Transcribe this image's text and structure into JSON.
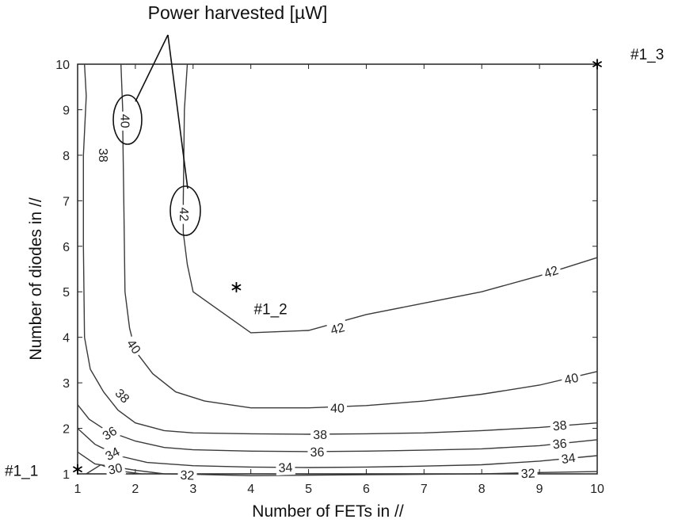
{
  "chart_data": {
    "type": "contour",
    "title": "",
    "xlabel": "Number of FETs in //",
    "ylabel": "Number of diodes in  //",
    "xlim": [
      1,
      10
    ],
    "ylim": [
      1,
      10
    ],
    "xticks": [
      1,
      2,
      3,
      4,
      5,
      6,
      7,
      8,
      9,
      10
    ],
    "yticks": [
      1,
      2,
      3,
      4,
      5,
      6,
      7,
      8,
      9,
      10
    ],
    "grid": false,
    "line_color": "#3a3a3a",
    "annotation": "Power harvested [µW]",
    "contours": [
      {
        "level": "30",
        "points": [
          [
            1.15,
            1.0
          ],
          [
            1.4,
            1.2
          ],
          [
            1.6,
            1.1
          ],
          [
            1.8,
            1.05
          ],
          [
            2.1,
            1.0
          ]
        ],
        "label_at": [
          1.65,
          1.12
        ],
        "label_angle": 12
      },
      {
        "level": "32",
        "points": [
          [
            1.0,
            1.48
          ],
          [
            1.3,
            1.22
          ],
          [
            1.7,
            1.14
          ],
          [
            2.0,
            1.08
          ],
          [
            2.5,
            1.0
          ],
          [
            3.0,
            0.99
          ],
          [
            4.0,
            0.96
          ],
          [
            5.0,
            0.97
          ],
          [
            6.0,
            0.98
          ],
          [
            7.0,
            0.99
          ],
          [
            8.0,
            1.0
          ],
          [
            9.0,
            1.03
          ],
          [
            10.0,
            1.05
          ]
        ],
        "label_at": [
          [
            2.9,
            0.98
          ],
          [
            8.8,
            1.02
          ]
        ],
        "label_angle": [
          -3,
          3
        ]
      },
      {
        "level": "34",
        "points": [
          [
            1.0,
            2.0
          ],
          [
            1.3,
            1.65
          ],
          [
            1.7,
            1.4
          ],
          [
            2.2,
            1.25
          ],
          [
            3.0,
            1.18
          ],
          [
            4.0,
            1.15
          ],
          [
            5.0,
            1.14
          ],
          [
            6.0,
            1.15
          ],
          [
            7.0,
            1.17
          ],
          [
            8.0,
            1.2
          ],
          [
            9.0,
            1.28
          ],
          [
            10.0,
            1.4
          ]
        ],
        "label_at": [
          [
            1.6,
            1.45
          ],
          [
            4.6,
            1.15
          ],
          [
            9.5,
            1.35
          ]
        ],
        "label_angle": [
          28,
          3,
          8
        ]
      },
      {
        "level": "36",
        "points": [
          [
            1.0,
            2.52
          ],
          [
            1.2,
            2.2
          ],
          [
            1.5,
            1.95
          ],
          [
            2.0,
            1.72
          ],
          [
            2.5,
            1.58
          ],
          [
            3.0,
            1.53
          ],
          [
            4.0,
            1.5
          ],
          [
            5.0,
            1.49
          ],
          [
            6.0,
            1.5
          ],
          [
            7.0,
            1.52
          ],
          [
            8.0,
            1.55
          ],
          [
            9.0,
            1.62
          ],
          [
            10.0,
            1.75
          ]
        ],
        "label_at": [
          [
            1.55,
            1.9
          ],
          [
            5.15,
            1.49
          ],
          [
            9.35,
            1.67
          ]
        ],
        "label_angle": [
          32,
          1,
          6
        ]
      },
      {
        "level": "38",
        "points": [
          [
            1.12,
            10.0
          ],
          [
            1.15,
            9.3
          ],
          [
            1.1,
            8.0
          ],
          [
            1.1,
            6.0
          ],
          [
            1.12,
            4.0
          ],
          [
            1.22,
            3.3
          ],
          [
            1.45,
            2.8
          ],
          [
            1.7,
            2.4
          ],
          [
            2.0,
            2.12
          ],
          [
            2.5,
            1.95
          ],
          [
            3.0,
            1.9
          ],
          [
            4.0,
            1.88
          ],
          [
            5.0,
            1.87
          ],
          [
            6.0,
            1.88
          ],
          [
            7.0,
            1.9
          ],
          [
            8.0,
            1.95
          ],
          [
            9.0,
            2.02
          ],
          [
            10.0,
            2.12
          ]
        ],
        "label_at": [
          [
            1.45,
            8.0
          ],
          [
            1.78,
            2.72
          ],
          [
            5.2,
            1.87
          ],
          [
            9.35,
            2.07
          ]
        ],
        "label_angle": [
          -90,
          -45,
          0,
          6
        ]
      },
      {
        "level": "40",
        "points": [
          [
            1.75,
            10.0
          ],
          [
            1.78,
            9.0
          ],
          [
            1.78,
            8.7
          ],
          [
            1.8,
            7.0
          ],
          [
            1.82,
            5.0
          ],
          [
            1.9,
            4.2
          ],
          [
            2.0,
            3.7
          ],
          [
            2.3,
            3.2
          ],
          [
            2.7,
            2.8
          ],
          [
            3.2,
            2.6
          ],
          [
            4.0,
            2.45
          ],
          [
            5.0,
            2.45
          ],
          [
            6.0,
            2.5
          ],
          [
            7.0,
            2.6
          ],
          [
            8.0,
            2.75
          ],
          [
            9.0,
            2.95
          ],
          [
            10.0,
            3.25
          ]
        ],
        "label_at": [
          [
            1.83,
            8.75
          ],
          [
            1.98,
            3.8
          ],
          [
            5.5,
            2.45
          ],
          [
            9.55,
            3.1
          ]
        ],
        "label_angle": [
          -90,
          -55,
          0,
          12
        ]
      },
      {
        "level": "42",
        "points": [
          [
            2.9,
            10.0
          ],
          [
            2.85,
            9.0
          ],
          [
            2.83,
            7.0
          ],
          [
            2.83,
            6.3
          ],
          [
            2.9,
            5.6
          ],
          [
            3.0,
            5.0
          ],
          [
            3.5,
            4.55
          ],
          [
            4.0,
            4.1
          ],
          [
            5.0,
            4.15
          ],
          [
            6.0,
            4.5
          ],
          [
            7.0,
            4.75
          ],
          [
            8.0,
            5.0
          ],
          [
            9.0,
            5.35
          ],
          [
            10.0,
            5.75
          ]
        ],
        "label_at": [
          [
            2.85,
            6.7
          ],
          [
            5.5,
            4.2
          ],
          [
            9.2,
            5.45
          ]
        ],
        "label_angle": [
          -90,
          15,
          18
        ]
      }
    ],
    "points": [
      {
        "label": "#1_1",
        "x": 1.0,
        "y": 1.1
      },
      {
        "label": "#1_2",
        "x": 3.75,
        "y": 5.1
      },
      {
        "label": "#1_3",
        "x": 10.0,
        "y": 10.0
      }
    ]
  }
}
